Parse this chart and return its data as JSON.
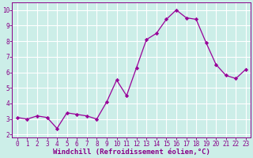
{
  "x": [
    0,
    1,
    2,
    3,
    4,
    5,
    6,
    7,
    8,
    9,
    10,
    11,
    12,
    13,
    14,
    15,
    16,
    17,
    18,
    19,
    20,
    21,
    22,
    23
  ],
  "y": [
    3.1,
    3.0,
    3.2,
    3.1,
    2.4,
    3.4,
    3.3,
    3.2,
    3.0,
    4.1,
    5.5,
    4.5,
    6.3,
    8.1,
    8.5,
    9.4,
    10.0,
    9.5,
    9.4,
    7.9,
    6.5,
    5.8,
    5.6,
    6.2
  ],
  "line_color": "#990099",
  "marker": "D",
  "marker_size": 2.2,
  "bg_color": "#cceee8",
  "grid_color": "#ffffff",
  "xlabel": "Windchill (Refroidissement éolien,°C)",
  "xlabel_color": "#880088",
  "tick_color": "#880088",
  "spine_color": "#880088",
  "xlim": [
    -0.5,
    23.5
  ],
  "ylim": [
    1.8,
    10.5
  ],
  "yticks": [
    2,
    3,
    4,
    5,
    6,
    7,
    8,
    9,
    10
  ],
  "xticks": [
    0,
    1,
    2,
    3,
    4,
    5,
    6,
    7,
    8,
    9,
    10,
    11,
    12,
    13,
    14,
    15,
    16,
    17,
    18,
    19,
    20,
    21,
    22,
    23
  ],
  "tick_fontsize": 5.5,
  "xlabel_fontsize": 6.5
}
